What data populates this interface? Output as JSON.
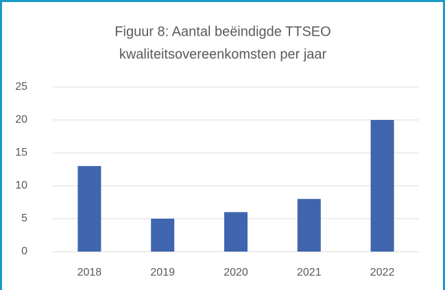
{
  "chart_data": {
    "type": "bar",
    "title": [
      "Figuur 8: Aantal beëindigde TTSEO",
      "kwaliteitsovereenkomsten per jaar"
    ],
    "categories": [
      "2018",
      "2019",
      "2020",
      "2021",
      "2022"
    ],
    "values": [
      13,
      5,
      6,
      8,
      20
    ],
    "color": "#3f65ae",
    "ylim": [
      0,
      25
    ],
    "yticks": [
      0,
      5,
      10,
      15,
      20,
      25
    ],
    "grid": true
  }
}
